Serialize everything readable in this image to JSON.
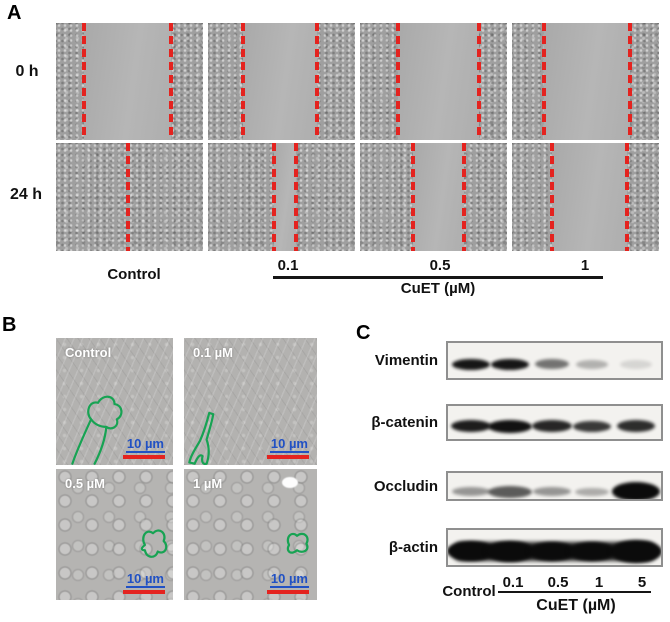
{
  "figure": {
    "colors": {
      "wound_edge_dash": "#e4231f",
      "scale_bar_red": "#e4231f",
      "scale_text_blue": "#2151c4",
      "cell_outline_green": "#17a353"
    },
    "panel_a": {
      "label": "A",
      "row_labels": [
        "0 h",
        "24 h"
      ],
      "rows": [
        {
          "label": "0 h",
          "images": [
            {
              "name": "control",
              "lines": [
                19,
                78
              ]
            },
            {
              "name": "0.1",
              "lines": [
                24,
                74
              ]
            },
            {
              "name": "0.5",
              "lines": [
                26,
                81
              ]
            },
            {
              "name": "1",
              "lines": [
                22,
                80
              ]
            }
          ]
        },
        {
          "label": "24 h",
          "images": [
            {
              "name": "control",
              "lines": [
                49
              ]
            },
            {
              "name": "0.1",
              "lines": [
                45,
                60
              ]
            },
            {
              "name": "0.5",
              "lines": [
                36,
                71
              ]
            },
            {
              "name": "1",
              "lines": [
                27,
                78
              ]
            }
          ]
        }
      ],
      "bottom": {
        "control_label": "Control",
        "doses": [
          "0.1",
          "0.5",
          "1"
        ],
        "group_label": "CuET (µM)"
      }
    },
    "panel_b": {
      "label": "B",
      "images": [
        {
          "label": "Control",
          "scale_label": "10 µm"
        },
        {
          "label": "0.1 µM",
          "scale_label": "10 µm"
        },
        {
          "label": "0.5 µM",
          "scale_label": "10 µm"
        },
        {
          "label": "1 µM",
          "scale_label": "10 µm"
        }
      ]
    },
    "panel_c": {
      "label": "C",
      "blots": [
        {
          "protein": "Vimentin",
          "intensities": [
            0.95,
            0.95,
            0.55,
            0.28,
            0.12
          ]
        },
        {
          "protein": "β-catenin",
          "intensities": [
            0.92,
            0.97,
            0.88,
            0.8,
            0.85
          ]
        },
        {
          "protein": "Occludin",
          "intensities": [
            0.4,
            0.65,
            0.4,
            0.3,
            1.0
          ]
        },
        {
          "protein": "β-actin",
          "intensities": [
            1,
            1,
            1,
            1,
            1
          ]
        }
      ],
      "bottom": {
        "control_label": "Control",
        "doses": [
          "0.1",
          "0.5",
          "1",
          "5"
        ],
        "group_label": "CuET (µM)"
      }
    }
  }
}
